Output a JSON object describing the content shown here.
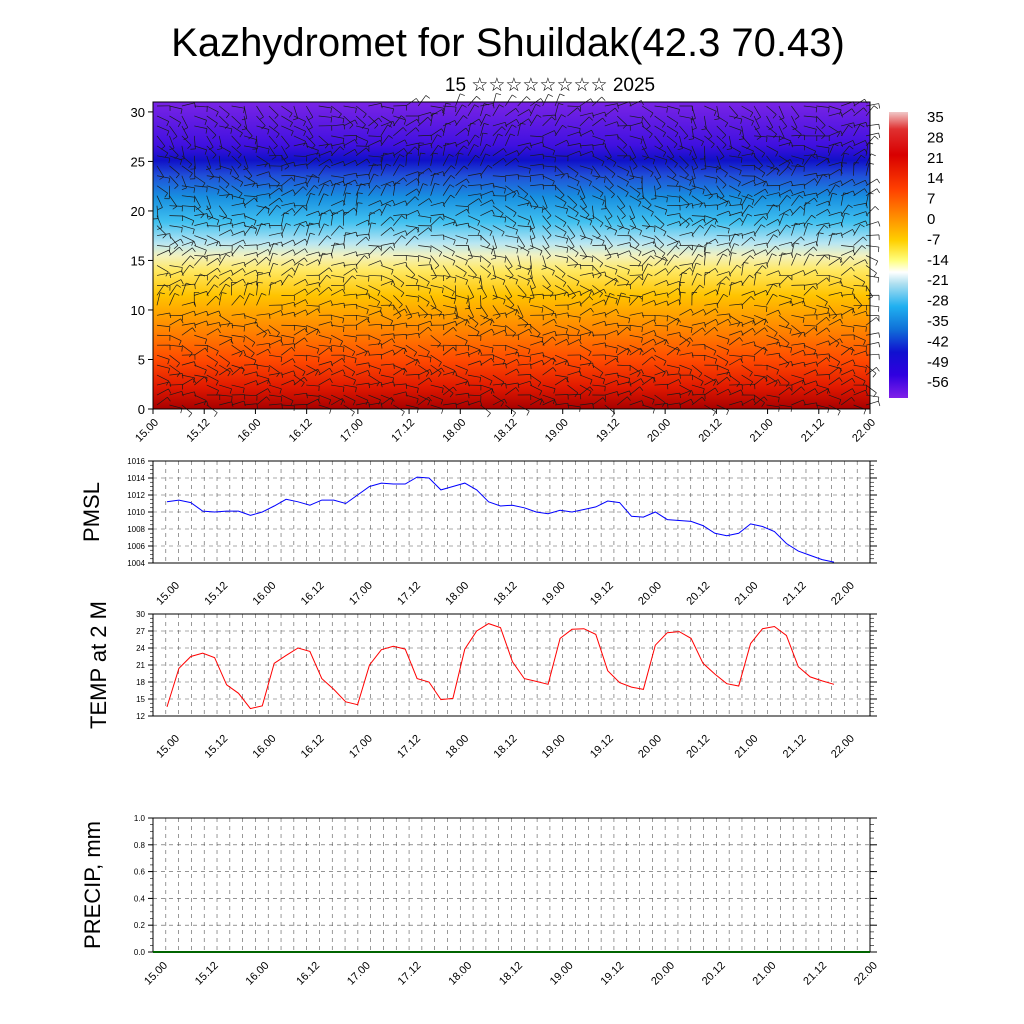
{
  "title": "Kazhydromet for Shuildak(42.3 70.43)",
  "subtitle": "15 ☆☆☆☆☆☆☆☆ 2025",
  "time_labels": [
    "15.00",
    "15.12",
    "16.00",
    "16.12",
    "17.00",
    "17.12",
    "18.00",
    "18.12",
    "19.00",
    "19.12",
    "20.00",
    "20.12",
    "21.00",
    "21.12",
    "22.00"
  ],
  "chart_data": [
    {
      "type": "heatmap",
      "title": "",
      "xlabel": "",
      "ylabel": "",
      "y_ticks": [
        0,
        5,
        10,
        15,
        20,
        25,
        30
      ],
      "ylim": [
        0,
        31
      ],
      "colorbar_labels": [
        "35",
        "28",
        "21",
        "14",
        "7",
        "0",
        "-7",
        "-14",
        "-21",
        "-28",
        "-35",
        "-42",
        "-49",
        "-56"
      ],
      "description_levels": [
        {
          "height": 0,
          "temp": 32
        },
        {
          "height": 5,
          "temp": 24
        },
        {
          "height": 10,
          "temp": 14
        },
        {
          "height": 15,
          "temp": -4
        },
        {
          "height": 20,
          "temp": -32
        },
        {
          "height": 25,
          "temp": -58
        },
        {
          "height": 30,
          "temp": -52
        }
      ]
    },
    {
      "type": "line",
      "ylabel": "PMSL",
      "y_ticks": [
        1004,
        1006,
        1008,
        1010,
        1012,
        1014,
        1016
      ],
      "ylim": [
        1004,
        1016
      ],
      "color": "#0000ff",
      "series": [
        {
          "values": [
            1011.2,
            1011.4,
            1011.1,
            1010.1,
            1010.0,
            1010.1,
            1010.1,
            1009.6,
            1010.0,
            1010.7,
            1011.5,
            1011.2,
            1010.8,
            1011.4,
            1011.4,
            1011.0,
            1012.0,
            1013.0,
            1013.4,
            1013.3,
            1013.3,
            1014.1,
            1014.0,
            1012.6,
            1013.0,
            1013.4,
            1012.6,
            1011.2,
            1010.7,
            1010.8,
            1010.5,
            1010.0,
            1009.8,
            1010.2,
            1010.0,
            1010.3,
            1010.6,
            1011.3,
            1011.1,
            1009.5,
            1009.4,
            1010.0,
            1009.1,
            1009.0,
            1008.9,
            1008.4,
            1007.5,
            1007.2,
            1007.5,
            1008.6,
            1008.3,
            1007.7,
            1006.3,
            1005.4,
            1004.9,
            1004.4,
            1004.1
          ]
        }
      ]
    },
    {
      "type": "line",
      "ylabel": "TEMP at 2 M",
      "y_ticks": [
        12,
        15,
        18,
        21,
        24,
        27,
        30
      ],
      "ylim": [
        12,
        30
      ],
      "color": "#ff0000",
      "series": [
        {
          "values": [
            13.6,
            20.4,
            22.5,
            23.1,
            22.3,
            17.5,
            16.0,
            13.3,
            13.8,
            21.3,
            22.7,
            24.0,
            23.4,
            18.6,
            16.7,
            14.5,
            14.0,
            21.0,
            23.7,
            24.3,
            23.8,
            18.6,
            18.0,
            14.9,
            15.1,
            23.8,
            27.0,
            28.3,
            27.6,
            21.6,
            18.6,
            18.1,
            17.6,
            25.7,
            27.3,
            27.4,
            26.4,
            20.0,
            17.9,
            17.1,
            16.7,
            24.5,
            26.7,
            26.9,
            25.7,
            21.3,
            19.4,
            17.7,
            17.3,
            24.8,
            27.4,
            27.8,
            26.2,
            20.7,
            18.9,
            18.2,
            17.6
          ]
        }
      ]
    },
    {
      "type": "line",
      "ylabel": "PRECIP, mm",
      "y_ticks": [
        "0.0",
        "0.2",
        "0.4",
        "0.6",
        "0.8",
        "1.0"
      ],
      "ylim": [
        0,
        1
      ],
      "color": "#006400",
      "series": [
        {
          "values": [
            0,
            0,
            0,
            0,
            0,
            0,
            0,
            0,
            0,
            0,
            0,
            0,
            0,
            0,
            0,
            0,
            0,
            0,
            0,
            0,
            0,
            0,
            0,
            0,
            0,
            0,
            0,
            0,
            0,
            0,
            0,
            0,
            0,
            0,
            0,
            0,
            0,
            0,
            0,
            0,
            0,
            0,
            0,
            0,
            0,
            0,
            0,
            0,
            0,
            0,
            0,
            0,
            0,
            0,
            0,
            0,
            0
          ]
        }
      ]
    }
  ]
}
